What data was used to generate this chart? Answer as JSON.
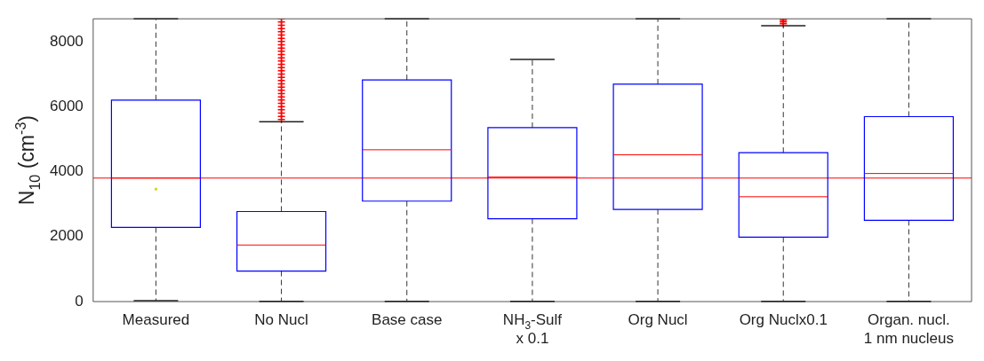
{
  "chart_data": {
    "type": "box",
    "ylabel": "N$_{10}$ (cm$^{-3}$)",
    "categories": [
      "Measured",
      "No Nucl",
      "Base case",
      "NH$_{3}$-Sulf\nx 0.1",
      "Org Nucl",
      "Org Nuclx0.1",
      "Organ. nucl.\n1 nm nucleus"
    ],
    "ylim": [
      0,
      8700
    ],
    "yticks": [
      0,
      2000,
      4000,
      6000,
      8000
    ],
    "grid": false,
    "legend": false,
    "marker": "cross",
    "series": [
      {
        "color": "#0000ff",
        "boxes": [
          {
            "low": 30,
            "q1": 2280,
            "median": 3800,
            "q3": 6200,
            "high": 8700,
            "mean": 3460
          },
          {
            "low": 10,
            "q1": 940,
            "median": 1740,
            "q3": 2770,
            "high": 5530,
            "outliers": [
              5600,
              5700,
              5800,
              5900,
              6000,
              6100,
              6200,
              6300,
              6400,
              6500,
              6600,
              6700,
              6800,
              6900,
              7000,
              7100,
              7200,
              7300,
              7400,
              7500,
              7600,
              7700,
              7800,
              7900,
              8000,
              8100,
              8200,
              8300,
              8400,
              8500,
              8600,
              8700
            ]
          },
          {
            "low": 10,
            "q1": 3090,
            "median": 4670,
            "q3": 6820,
            "high": 8700
          },
          {
            "low": 10,
            "q1": 2550,
            "median": 3830,
            "q3": 5350,
            "high": 7450
          },
          {
            "low": 10,
            "q1": 2835,
            "median": 4515,
            "q3": 6690,
            "high": 8700
          },
          {
            "low": 10,
            "q1": 1980,
            "median": 3225,
            "q3": 4580,
            "high": 8490,
            "outliers": [
              8550,
              8600,
              8650,
              8700
            ]
          },
          {
            "low": 10,
            "q1": 2500,
            "median": 3940,
            "q3": 5690,
            "high": 8700
          }
        ]
      }
    ],
    "ref_lines": [
      {
        "axis": "y",
        "value": 3800,
        "color": "#ff0000"
      }
    ]
  }
}
